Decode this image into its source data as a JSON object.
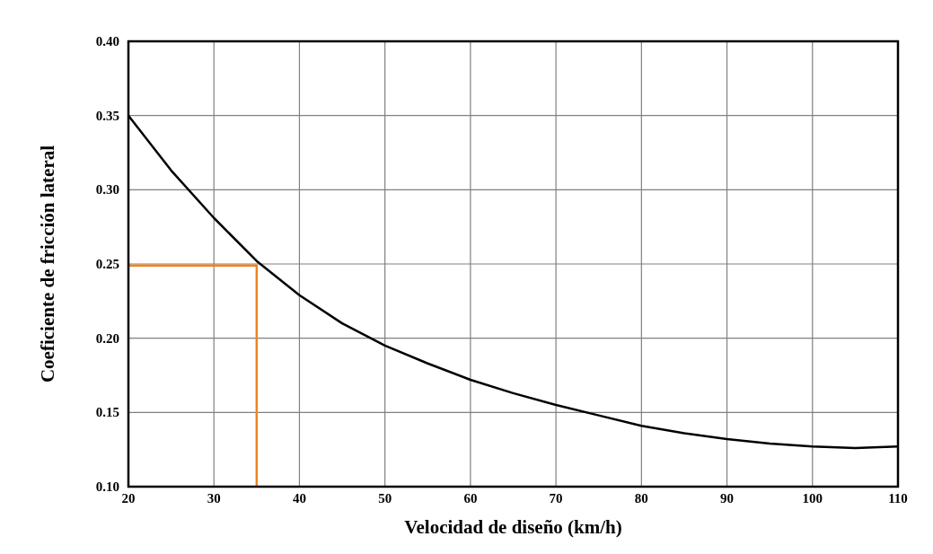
{
  "chart_data": {
    "type": "line",
    "xlabel": "Velocidad de diseño (km/h)",
    "ylabel": "Coeficiente de fricción lateral",
    "xlim": [
      20,
      110
    ],
    "xticks": [
      20,
      30,
      40,
      50,
      60,
      70,
      80,
      90,
      100,
      110
    ],
    "ylim": [
      0.1,
      0.4
    ],
    "yticks": [
      {
        "value": 0.1,
        "label": "0.10"
      },
      {
        "value": 0.15,
        "label": "0.15"
      },
      {
        "value": 0.2,
        "label": "0.20"
      },
      {
        "value": 0.25,
        "label": "0.25"
      },
      {
        "value": 0.3,
        "label": "0.30"
      },
      {
        "value": 0.35,
        "label": "0.35"
      },
      {
        "value": 0.4,
        "label": "0.40"
      }
    ],
    "grid": true,
    "series": [
      {
        "color": "#000000",
        "x": [
          20,
          25,
          30,
          35,
          40,
          45,
          50,
          55,
          60,
          65,
          70,
          75,
          80,
          85,
          90,
          95,
          100,
          105,
          110
        ],
        "values": [
          0.35,
          0.313,
          0.281,
          0.252,
          0.229,
          0.21,
          0.195,
          0.183,
          0.172,
          0.163,
          0.155,
          0.148,
          0.141,
          0.136,
          0.132,
          0.129,
          0.127,
          0.126,
          0.127
        ]
      },
      {
        "color": "#f0821e",
        "x": [
          20,
          35,
          35
        ],
        "values": [
          0.249,
          0.249,
          0.1
        ]
      }
    ]
  }
}
